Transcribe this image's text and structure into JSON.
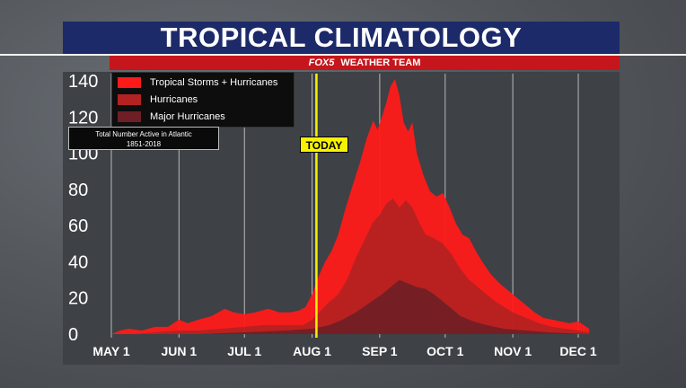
{
  "header": {
    "title": "TROPICAL CLIMATOLOGY",
    "brand": "FOX5",
    "subtitle": "WEATHER TEAM"
  },
  "note": {
    "line1": "Total Number Active in Atlantic",
    "line2": "1851-2018"
  },
  "today_label": "TODAY",
  "chart_data": {
    "type": "area",
    "ylim": [
      0,
      140
    ],
    "yticks": [
      "0",
      "20",
      "40",
      "60",
      "80",
      "100",
      "120",
      "140"
    ],
    "x_labels": [
      "MAY 1",
      "JUN 1",
      "JUL 1",
      "AUG 1",
      "SEP 1",
      "OCT 1",
      "NOV 1",
      "DEC 1"
    ],
    "x_label_days": [
      0,
      31,
      61,
      92,
      123,
      153,
      184,
      214
    ],
    "xlim": [
      0,
      219
    ],
    "today_day": 94,
    "legend_position": "top-left",
    "grid": "vertical lines at month starts",
    "series": [
      {
        "name": "Tropical Storms + Hurricanes",
        "color": "#ff1a1a",
        "points": [
          [
            0,
            0
          ],
          [
            4,
            2
          ],
          [
            8,
            3
          ],
          [
            14,
            2
          ],
          [
            20,
            4
          ],
          [
            26,
            4
          ],
          [
            31,
            8
          ],
          [
            35,
            6
          ],
          [
            40,
            8
          ],
          [
            46,
            10
          ],
          [
            52,
            14
          ],
          [
            56,
            12
          ],
          [
            61,
            11
          ],
          [
            66,
            12
          ],
          [
            72,
            14
          ],
          [
            77,
            12
          ],
          [
            82,
            12
          ],
          [
            86,
            13
          ],
          [
            89,
            15
          ],
          [
            92,
            22
          ],
          [
            95,
            32
          ],
          [
            98,
            40
          ],
          [
            101,
            46
          ],
          [
            104,
            55
          ],
          [
            107,
            68
          ],
          [
            110,
            80
          ],
          [
            114,
            95
          ],
          [
            117,
            108
          ],
          [
            120,
            118
          ],
          [
            122,
            113
          ],
          [
            124,
            120
          ],
          [
            126,
            128
          ],
          [
            128,
            137
          ],
          [
            130,
            141
          ],
          [
            132,
            132
          ],
          [
            134,
            117
          ],
          [
            136,
            112
          ],
          [
            138,
            117
          ],
          [
            140,
            100
          ],
          [
            143,
            88
          ],
          [
            146,
            79
          ],
          [
            149,
            76
          ],
          [
            152,
            78
          ],
          [
            155,
            70
          ],
          [
            158,
            61
          ],
          [
            161,
            55
          ],
          [
            164,
            53
          ],
          [
            167,
            46
          ],
          [
            170,
            40
          ],
          [
            174,
            33
          ],
          [
            178,
            28
          ],
          [
            182,
            24
          ],
          [
            186,
            20
          ],
          [
            190,
            16
          ],
          [
            194,
            12
          ],
          [
            198,
            9
          ],
          [
            202,
            8
          ],
          [
            206,
            7
          ],
          [
            210,
            6
          ],
          [
            214,
            7
          ],
          [
            219,
            3
          ]
        ]
      },
      {
        "name": "Hurricanes",
        "color": "#b32222",
        "points": [
          [
            0,
            0
          ],
          [
            10,
            0
          ],
          [
            20,
            1
          ],
          [
            31,
            2
          ],
          [
            40,
            2
          ],
          [
            50,
            3
          ],
          [
            61,
            4
          ],
          [
            70,
            5
          ],
          [
            80,
            5
          ],
          [
            88,
            5
          ],
          [
            92,
            8
          ],
          [
            96,
            13
          ],
          [
            100,
            18
          ],
          [
            104,
            22
          ],
          [
            108,
            30
          ],
          [
            112,
            42
          ],
          [
            116,
            52
          ],
          [
            120,
            62
          ],
          [
            123,
            66
          ],
          [
            126,
            72
          ],
          [
            129,
            75
          ],
          [
            132,
            70
          ],
          [
            135,
            74
          ],
          [
            138,
            70
          ],
          [
            141,
            62
          ],
          [
            144,
            55
          ],
          [
            148,
            53
          ],
          [
            152,
            50
          ],
          [
            156,
            44
          ],
          [
            160,
            36
          ],
          [
            164,
            30
          ],
          [
            168,
            26
          ],
          [
            172,
            22
          ],
          [
            176,
            18
          ],
          [
            180,
            15
          ],
          [
            184,
            12
          ],
          [
            190,
            9
          ],
          [
            196,
            6
          ],
          [
            202,
            4
          ],
          [
            208,
            3
          ],
          [
            214,
            2
          ],
          [
            219,
            1
          ]
        ]
      },
      {
        "name": "Major Hurricanes",
        "color": "#6e1f26",
        "points": [
          [
            0,
            0
          ],
          [
            40,
            0
          ],
          [
            61,
            1
          ],
          [
            80,
            2
          ],
          [
            92,
            3
          ],
          [
            100,
            5
          ],
          [
            106,
            8
          ],
          [
            112,
            12
          ],
          [
            118,
            17
          ],
          [
            124,
            22
          ],
          [
            128,
            26
          ],
          [
            132,
            30
          ],
          [
            136,
            28
          ],
          [
            140,
            26
          ],
          [
            144,
            25
          ],
          [
            148,
            22
          ],
          [
            152,
            18
          ],
          [
            156,
            14
          ],
          [
            160,
            10
          ],
          [
            166,
            7
          ],
          [
            172,
            5
          ],
          [
            180,
            3
          ],
          [
            190,
            2
          ],
          [
            200,
            1
          ],
          [
            219,
            0
          ]
        ]
      }
    ]
  }
}
